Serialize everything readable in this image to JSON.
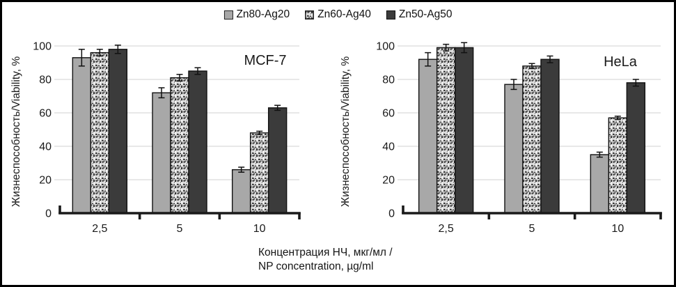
{
  "legend": {
    "items": [
      {
        "label": "Zn80-Ag20",
        "swatch": "gray"
      },
      {
        "label": "Zn60-Ag40",
        "swatch": "speckled"
      },
      {
        "label": "Zn50-Ag50",
        "swatch": "dark"
      }
    ]
  },
  "colors": {
    "bar_gray": "#a8a8a8",
    "bar_speckle_base": "#dedede",
    "bar_dark": "#3b3b3b",
    "bar_stroke": "#111111",
    "gridline": "#d9d9d9",
    "axis": "#1a1a1a",
    "text": "#1a1a1a"
  },
  "xlabel": {
    "line1": "Концентрация НЧ, мкг/мл /",
    "line2": "NP concentration, µg/ml"
  },
  "chart_data": [
    {
      "type": "bar",
      "title": "MCF-7",
      "ylabel": "Жизнеспособность/Viability, %",
      "categories": [
        "2,5",
        "5",
        "10"
      ],
      "series": [
        {
          "name": "Zn80-Ag20",
          "style": "gray",
          "values": [
            93,
            72,
            26
          ],
          "errors": [
            5,
            3,
            1.5
          ]
        },
        {
          "name": "Zn60-Ag40",
          "style": "speckled",
          "values": [
            96,
            81,
            48
          ],
          "errors": [
            2,
            2,
            1
          ]
        },
        {
          "name": "Zn50-Ag50",
          "style": "dark",
          "values": [
            98,
            85,
            63
          ],
          "errors": [
            2.5,
            2,
            1.5
          ]
        }
      ],
      "ylim": [
        0,
        100
      ],
      "yticks": [
        0,
        20,
        40,
        60,
        80,
        100
      ],
      "grid": true,
      "legend_position": "top-center-shared"
    },
    {
      "type": "bar",
      "title": "HeLa",
      "ylabel": "Жизнеспособность/Viability, %",
      "categories": [
        "2,5",
        "5",
        "10"
      ],
      "series": [
        {
          "name": "Zn80-Ag20",
          "style": "gray",
          "values": [
            92,
            77,
            35
          ],
          "errors": [
            4,
            3,
            1.5
          ]
        },
        {
          "name": "Zn60-Ag40",
          "style": "speckled",
          "values": [
            99,
            88,
            57
          ],
          "errors": [
            2,
            1.5,
            1
          ]
        },
        {
          "name": "Zn50-Ag50",
          "style": "dark",
          "values": [
            99,
            92,
            78
          ],
          "errors": [
            3,
            2,
            2
          ]
        }
      ],
      "ylim": [
        0,
        100
      ],
      "yticks": [
        0,
        20,
        40,
        60,
        80,
        100
      ],
      "grid": true,
      "legend_position": "top-center-shared"
    }
  ]
}
